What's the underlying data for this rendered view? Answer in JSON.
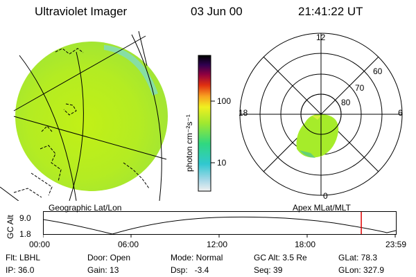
{
  "header": {
    "title": "Ultraviolet Imager",
    "date": "03 Jun 00",
    "time": "21:41:22 UT"
  },
  "colorbar": {
    "unit_label": "photon cm⁻²s⁻¹",
    "tick_100": "100",
    "tick_10": "10"
  },
  "geo_panel": {
    "label": "Geographic Lat/Lon",
    "fill_color": "#b8ee1c",
    "edge_color": "#5edbd0"
  },
  "polar_panel": {
    "label": "Apex MLat/MLT",
    "mlt_labels": {
      "top": "12",
      "left": "18",
      "right": "6",
      "bottom": "0"
    },
    "lat_labels": [
      "60",
      "70",
      "80"
    ],
    "oval_color": "#a6ec2a"
  },
  "altitude_strip": {
    "axis_label": "GC Alt",
    "ymax": "9.0",
    "ymin": "1.8",
    "time_ticks": [
      "00:00",
      "06:00",
      "12:00",
      "18:00",
      "23:59"
    ],
    "current_time_marker_fraction_of_day": 0.9037,
    "marker_color": "#e00000"
  },
  "metadata": {
    "row1": {
      "flt": "Flt: LBHL",
      "door": "Door: Open",
      "mode": "Mode: Normal",
      "gc_alt": "GC Alt: 3.5 Re",
      "glat": "GLat: 78.3"
    },
    "row2": {
      "ip": "IP: 36.0",
      "gain": "Gain: 13",
      "dsp": "Dsp:   -3.4",
      "seq": "Seq: 39",
      "glon": "GLon: 327.9"
    }
  }
}
